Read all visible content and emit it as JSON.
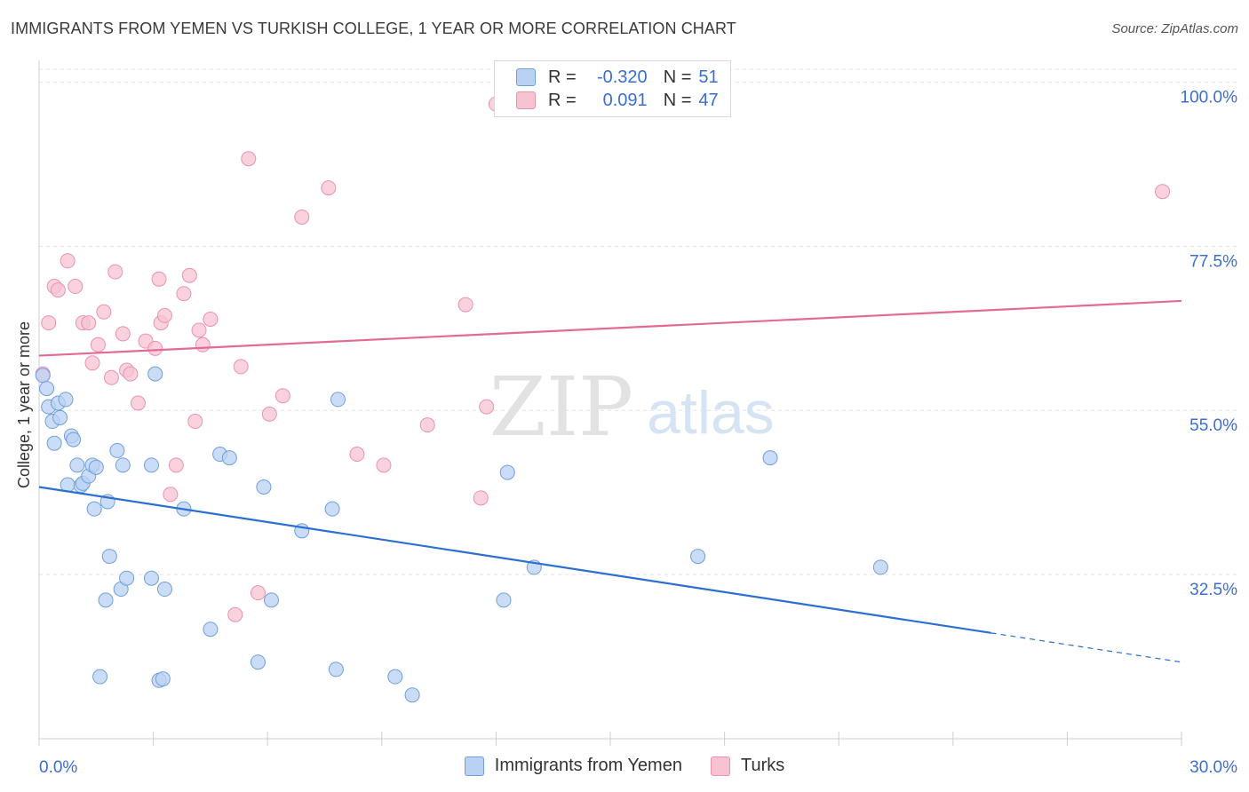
{
  "title": "IMMIGRANTS FROM YEMEN VS TURKISH COLLEGE, 1 YEAR OR MORE CORRELATION CHART",
  "source": "Source: ZipAtlas.com",
  "watermark": {
    "zip": "ZIP",
    "atlas": "atlas"
  },
  "stats": {
    "r_label": "R =",
    "n_label": "N =",
    "yemen": {
      "r": "-0.320",
      "n": "51"
    },
    "turks": {
      "r": "0.091",
      "n": "47"
    }
  },
  "colors": {
    "yemen_fill": "#b9d2f3",
    "yemen_stroke": "#6f9fdd",
    "yemen_line": "#2b6fd0",
    "turks_fill": "#f7c3d3",
    "turks_stroke": "#e893b0",
    "turks_line": "#e26a94",
    "tick_label": "#3a6fd1",
    "grid": "#e3e3e3"
  },
  "chart_data": {
    "type": "scatter",
    "title": "IMMIGRANTS FROM YEMEN VS TURKISH COLLEGE, 1 YEAR OR MORE CORRELATION CHART",
    "xlabel": "",
    "ylabel": "College, 1 year or more",
    "xlim": [
      0,
      30
    ],
    "ylim": [
      10,
      102
    ],
    "x_tick_labels": [
      "0.0%",
      "30.0%"
    ],
    "y_ticks": [
      32.5,
      55.0,
      77.5,
      100.0
    ],
    "y_tick_labels": [
      "32.5%",
      "55.0%",
      "77.5%",
      "100.0%"
    ],
    "grid": true,
    "legend_position": "bottom-center",
    "series": [
      {
        "name": "Immigrants from Yemen",
        "color": "#6f9fdd",
        "trend": {
          "x": [
            0,
            25
          ],
          "y": [
            44.5,
            24.5
          ],
          "dashed_to": [
            30,
            20.5
          ]
        },
        "points": [
          [
            0.1,
            59.8
          ],
          [
            0.2,
            58.0
          ],
          [
            0.25,
            55.5
          ],
          [
            0.35,
            53.5
          ],
          [
            0.4,
            50.5
          ],
          [
            0.5,
            56.0
          ],
          [
            0.55,
            54.0
          ],
          [
            0.7,
            56.5
          ],
          [
            0.75,
            44.8
          ],
          [
            0.85,
            51.5
          ],
          [
            0.9,
            51.0
          ],
          [
            1.0,
            47.5
          ],
          [
            1.1,
            44.7
          ],
          [
            1.15,
            45.0
          ],
          [
            1.3,
            46.0
          ],
          [
            1.4,
            47.5
          ],
          [
            1.45,
            41.5
          ],
          [
            1.5,
            47.2
          ],
          [
            1.6,
            18.5
          ],
          [
            1.75,
            29.0
          ],
          [
            1.8,
            42.5
          ],
          [
            1.85,
            35.0
          ],
          [
            2.05,
            49.5
          ],
          [
            2.15,
            30.5
          ],
          [
            2.2,
            47.5
          ],
          [
            2.3,
            32.0
          ],
          [
            2.95,
            47.5
          ],
          [
            2.95,
            32.0
          ],
          [
            3.05,
            60.0
          ],
          [
            3.15,
            18.0
          ],
          [
            3.25,
            18.2
          ],
          [
            3.3,
            30.5
          ],
          [
            3.8,
            41.5
          ],
          [
            4.5,
            25.0
          ],
          [
            4.75,
            49.0
          ],
          [
            5.0,
            48.5
          ],
          [
            5.75,
            20.5
          ],
          [
            5.9,
            44.5
          ],
          [
            6.1,
            29.0
          ],
          [
            6.9,
            38.5
          ],
          [
            7.7,
            41.5
          ],
          [
            7.8,
            19.5
          ],
          [
            7.85,
            56.5
          ],
          [
            9.35,
            18.5
          ],
          [
            9.8,
            16.0
          ],
          [
            12.2,
            29.0
          ],
          [
            12.3,
            46.5
          ],
          [
            13.0,
            33.5
          ],
          [
            17.3,
            35.0
          ],
          [
            19.2,
            48.5
          ],
          [
            22.1,
            33.5
          ]
        ]
      },
      {
        "name": "Turks",
        "color": "#e893b0",
        "trend": {
          "x": [
            0,
            30
          ],
          "y": [
            62.5,
            70.0
          ]
        },
        "points": [
          [
            0.1,
            60.0
          ],
          [
            0.25,
            67.0
          ],
          [
            0.4,
            72.0
          ],
          [
            0.5,
            71.5
          ],
          [
            0.75,
            75.5
          ],
          [
            0.95,
            72.0
          ],
          [
            1.15,
            67.0
          ],
          [
            1.3,
            67.0
          ],
          [
            1.4,
            61.5
          ],
          [
            1.55,
            64.0
          ],
          [
            1.7,
            68.5
          ],
          [
            1.9,
            59.5
          ],
          [
            2.0,
            74.0
          ],
          [
            2.2,
            65.5
          ],
          [
            2.3,
            60.5
          ],
          [
            2.4,
            60.0
          ],
          [
            2.6,
            56.0
          ],
          [
            2.8,
            64.5
          ],
          [
            3.05,
            63.5
          ],
          [
            3.15,
            73.0
          ],
          [
            3.2,
            67.0
          ],
          [
            3.3,
            68.0
          ],
          [
            3.45,
            43.5
          ],
          [
            3.6,
            47.5
          ],
          [
            3.8,
            71.0
          ],
          [
            3.95,
            73.5
          ],
          [
            4.1,
            53.5
          ],
          [
            4.2,
            66.0
          ],
          [
            4.3,
            64.0
          ],
          [
            4.5,
            67.5
          ],
          [
            5.15,
            27.0
          ],
          [
            5.3,
            61.0
          ],
          [
            5.5,
            89.5
          ],
          [
            5.75,
            30.0
          ],
          [
            6.05,
            54.5
          ],
          [
            6.4,
            57.0
          ],
          [
            6.9,
            81.5
          ],
          [
            7.6,
            85.5
          ],
          [
            8.35,
            49.0
          ],
          [
            9.05,
            47.5
          ],
          [
            10.2,
            53.0
          ],
          [
            11.2,
            69.5
          ],
          [
            11.6,
            43.0
          ],
          [
            11.75,
            55.5
          ],
          [
            12.0,
            97.0
          ],
          [
            29.5,
            85.0
          ],
          [
            12.3,
            100.0
          ]
        ]
      }
    ]
  },
  "legend": {
    "yemen": "Immigrants from Yemen",
    "turks": "Turks"
  }
}
